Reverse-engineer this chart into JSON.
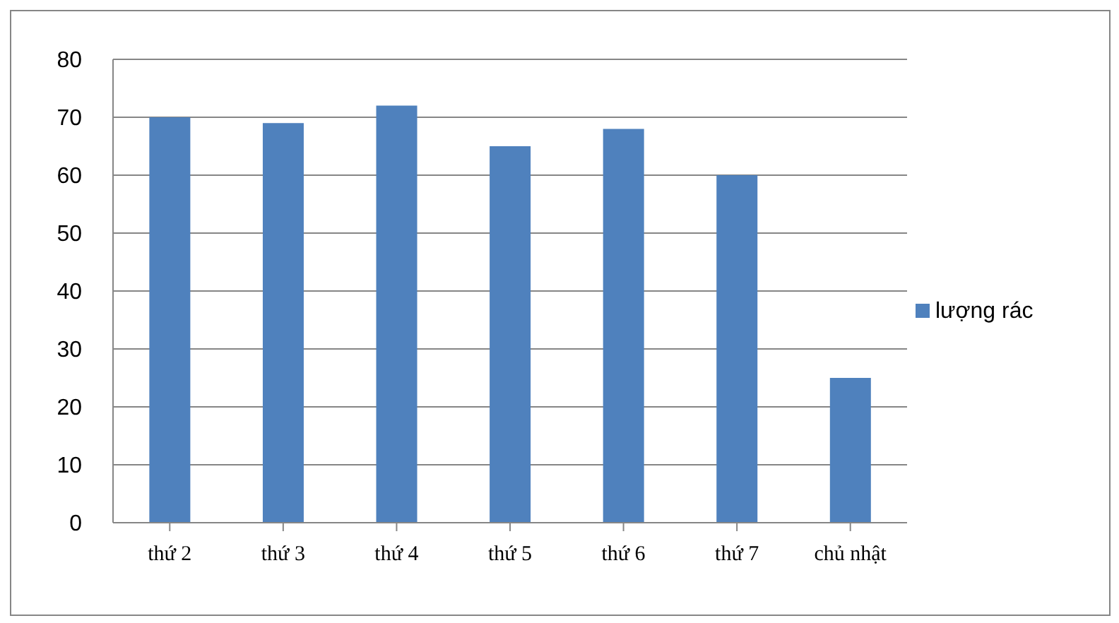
{
  "chart_data": {
    "type": "bar",
    "categories": [
      "thứ 2",
      "thứ 3",
      "thứ 4",
      "thứ 5",
      "thứ 6",
      "thứ 7",
      "chủ nhật"
    ],
    "series": [
      {
        "name": "lượng rác",
        "color": "#4f81bd",
        "values": [
          70,
          69,
          72,
          65,
          68,
          60,
          25
        ]
      }
    ],
    "ylim": [
      0,
      80
    ],
    "yticks": [
      0,
      10,
      20,
      30,
      40,
      50,
      60,
      70,
      80
    ],
    "grid": "y",
    "legend": "right"
  }
}
